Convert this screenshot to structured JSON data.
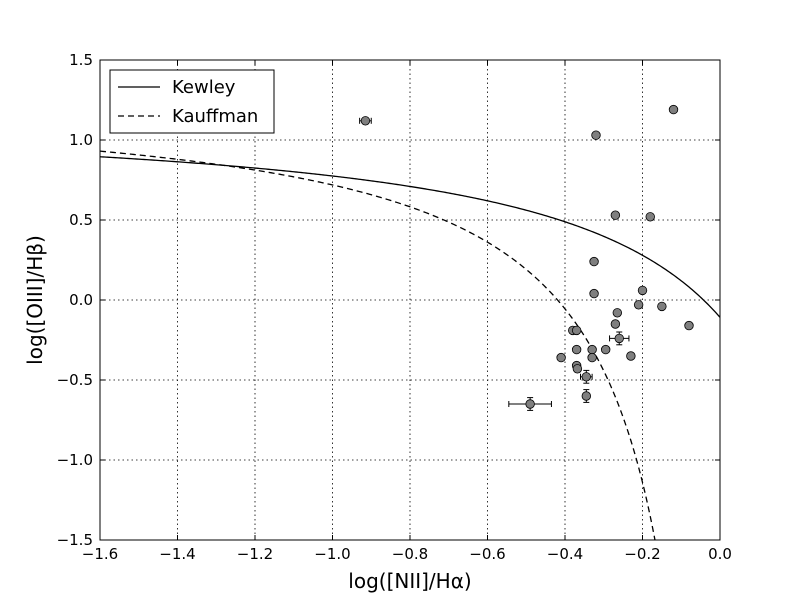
{
  "chart_data": {
    "type": "scatter",
    "xlabel": "log([NII]/Hα)",
    "ylabel": "log([OIII]/Hβ)",
    "xlim": [
      -1.6,
      0.0
    ],
    "ylim": [
      -1.5,
      1.5
    ],
    "xticks": [
      "−1.6",
      "−1.4",
      "−1.2",
      "−1.0",
      "−0.8",
      "−0.6",
      "−0.4",
      "−0.2",
      "0.0"
    ],
    "yticks": [
      "1.5",
      "1.0",
      "0.5",
      "0.0",
      "−0.5",
      "−1.0",
      "−1.5"
    ],
    "grid": true,
    "legend_position": "top-left",
    "series": [
      {
        "name": "Kewley",
        "type": "line",
        "style": "solid",
        "color": "#000000"
      },
      {
        "name": "Kauffman",
        "type": "line",
        "style": "dashed",
        "color": "#000000"
      },
      {
        "type": "scatter",
        "color": "#7f7f7f",
        "points": [
          {
            "x": -0.915,
            "y": 1.12,
            "xerr": 0.015
          },
          {
            "x": -0.12,
            "y": 1.19
          },
          {
            "x": -0.32,
            "y": 1.03
          },
          {
            "x": -0.27,
            "y": 0.53
          },
          {
            "x": -0.18,
            "y": 0.52
          },
          {
            "x": -0.325,
            "y": 0.24
          },
          {
            "x": -0.2,
            "y": 0.06
          },
          {
            "x": -0.325,
            "y": 0.04
          },
          {
            "x": -0.21,
            "y": -0.03
          },
          {
            "x": -0.15,
            "y": -0.04
          },
          {
            "x": -0.265,
            "y": -0.08
          },
          {
            "x": -0.27,
            "y": -0.15
          },
          {
            "x": -0.08,
            "y": -0.16,
            "yerr": 0.02
          },
          {
            "x": -0.38,
            "y": -0.19
          },
          {
            "x": -0.37,
            "y": -0.19
          },
          {
            "x": -0.26,
            "y": -0.24,
            "xerr": 0.025,
            "yerr": 0.04
          },
          {
            "x": -0.37,
            "y": -0.31
          },
          {
            "x": -0.295,
            "y": -0.31
          },
          {
            "x": -0.33,
            "y": -0.31
          },
          {
            "x": -0.41,
            "y": -0.36
          },
          {
            "x": -0.33,
            "y": -0.36
          },
          {
            "x": -0.23,
            "y": -0.35
          },
          {
            "x": -0.37,
            "y": -0.41
          },
          {
            "x": -0.368,
            "y": -0.43
          },
          {
            "x": -0.345,
            "y": -0.48,
            "xerr": 0.015,
            "yerr": 0.04
          },
          {
            "x": -0.345,
            "y": -0.6,
            "yerr": 0.04
          },
          {
            "x": -0.49,
            "y": -0.65,
            "xerr": 0.055,
            "yerr": 0.04
          }
        ]
      }
    ]
  }
}
